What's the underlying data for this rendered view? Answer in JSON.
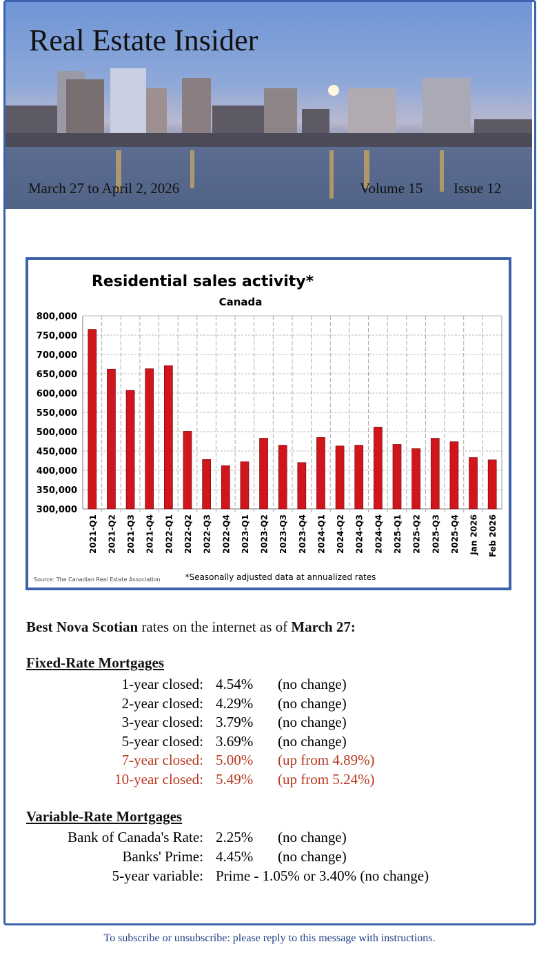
{
  "header": {
    "title": "Real Estate Insider",
    "date_range": "March 27 to April 2, 2026",
    "volume": "Volume 15",
    "issue": "Issue 12"
  },
  "chart_data": {
    "type": "bar",
    "title": "Residential sales activity*",
    "subtitle": "Canada",
    "xlabel": "",
    "ylabel": "",
    "ylim": [
      300000,
      800000
    ],
    "yticks": [
      300000,
      350000,
      400000,
      450000,
      500000,
      550000,
      600000,
      650000,
      700000,
      750000,
      800000
    ],
    "ytick_labels": [
      "300,000",
      "350,000",
      "400,000",
      "450,000",
      "500,000",
      "550,000",
      "600,000",
      "650,000",
      "700,000",
      "750,000",
      "800,000"
    ],
    "categories": [
      "2021-Q1",
      "2021-Q2",
      "2021-Q3",
      "2021-Q4",
      "2022-Q1",
      "2022-Q2",
      "2022-Q3",
      "2022-Q4",
      "2023-Q1",
      "2023-Q2",
      "2023-Q3",
      "2023-Q4",
      "2024-Q1",
      "2024-Q2",
      "2024-Q3",
      "2024-Q4",
      "2025-Q1",
      "2025-Q2",
      "2025-Q3",
      "2025-Q4",
      "Jan 2026",
      "Feb 2026"
    ],
    "values": [
      765000,
      662000,
      607000,
      663000,
      671000,
      501000,
      428000,
      412000,
      422000,
      483000,
      465000,
      420000,
      485000,
      463000,
      465000,
      512000,
      467000,
      456000,
      483000,
      474000,
      433000,
      427000
    ],
    "bar_color": "#d0161c",
    "grid": true,
    "source": "Source: The Canadian Real Estate Association",
    "footnote": "*Seasonally adjusted data at annualized rates"
  },
  "rates": {
    "intro_bold1": "Best Nova Scotian",
    "intro_mid": " rates on the internet as of ",
    "intro_bold2": "March 27:",
    "fixed_heading": "Fixed-Rate Mortgages",
    "fixed": [
      {
        "label": "1-year closed:",
        "value": "4.54%",
        "note": "(no change)",
        "changed": false
      },
      {
        "label": "2-year closed:",
        "value": "4.29%",
        "note": "(no change)",
        "changed": false
      },
      {
        "label": "3-year closed:",
        "value": "3.79%",
        "note": "(no change)",
        "changed": false
      },
      {
        "label": "5-year closed:",
        "value": "3.69%",
        "note": "(no change)",
        "changed": false
      },
      {
        "label": "7-year closed:",
        "value": "5.00%",
        "note": "(up from 4.89%)",
        "changed": true
      },
      {
        "label": "10-year closed:",
        "value": "5.49%",
        "note": "(up from 5.24%)",
        "changed": true
      }
    ],
    "variable_heading": "Variable-Rate Mortgages",
    "variable": [
      {
        "label": "Bank of Canada's Rate:",
        "value": "2.25%",
        "note": "(no change)"
      },
      {
        "label": "Banks' Prime:",
        "value": "4.45%",
        "note": "(no change)"
      },
      {
        "label": "5-year variable:",
        "value": "Prime - 1.05% or 3.40% (no change)",
        "note": ""
      }
    ],
    "change_color": "#b8391f"
  },
  "footer": "To subscribe or unsubscribe: please reply to this message with instructions."
}
